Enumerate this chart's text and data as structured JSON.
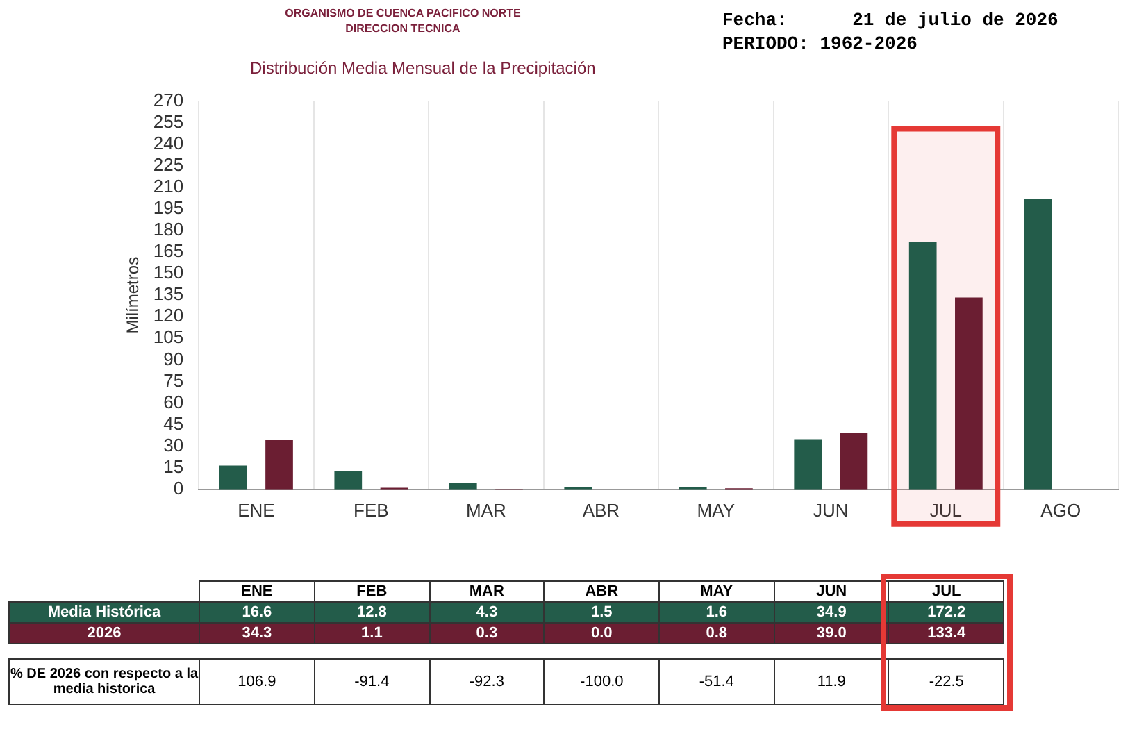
{
  "chart_data": {
    "type": "bar",
    "title": "Distribución Media Mensual de la Precipitación",
    "ylabel": "Milímetros",
    "categories": [
      "ENE",
      "FEB",
      "MAR",
      "ABR",
      "MAY",
      "JUN",
      "JUL",
      "AGO"
    ],
    "series": [
      {
        "name": "Media Histórica",
        "color": "#235c4a",
        "values": [
          16.6,
          12.8,
          4.3,
          1.5,
          1.6,
          34.9,
          172.2,
          202
        ],
        "value_labels": [
          "16.6",
          "12.8",
          "4.3",
          "1.5",
          "1.6",
          "34.9",
          "172.2",
          null
        ]
      },
      {
        "name": "2026",
        "color": "#6b1e32",
        "values": [
          34.3,
          1.1,
          0.3,
          0.0,
          0.8,
          39.0,
          133.4,
          null
        ],
        "value_labels": [
          "34.3",
          "1.1",
          "0.3",
          "0.0",
          "0.8",
          "39.0",
          "133.4",
          null
        ]
      }
    ],
    "ylim": [
      0,
      270
    ],
    "yticks": [
      0,
      15,
      30,
      45,
      60,
      75,
      90,
      105,
      120,
      135,
      150,
      165,
      180,
      195,
      210,
      225,
      240,
      255,
      270
    ],
    "grid": "x",
    "legend": false,
    "bands": [
      {
        "axis": "x",
        "from": "JUL",
        "to": "JUL",
        "color": "#e53935"
      }
    ],
    "annotations": [
      "ORGANISMO DE CUENCA PACIFICO NORTE",
      "DIRECCION TECNICA",
      "Fecha:      21 de julio de 2026",
      "PERIODO: 1962-2026",
      "% DE 2026 con respecto a la media historica",
      "106.9",
      "-91.4",
      "-92.3",
      "-100.0",
      "-51.4",
      "11.9",
      "-22.5"
    ]
  }
}
